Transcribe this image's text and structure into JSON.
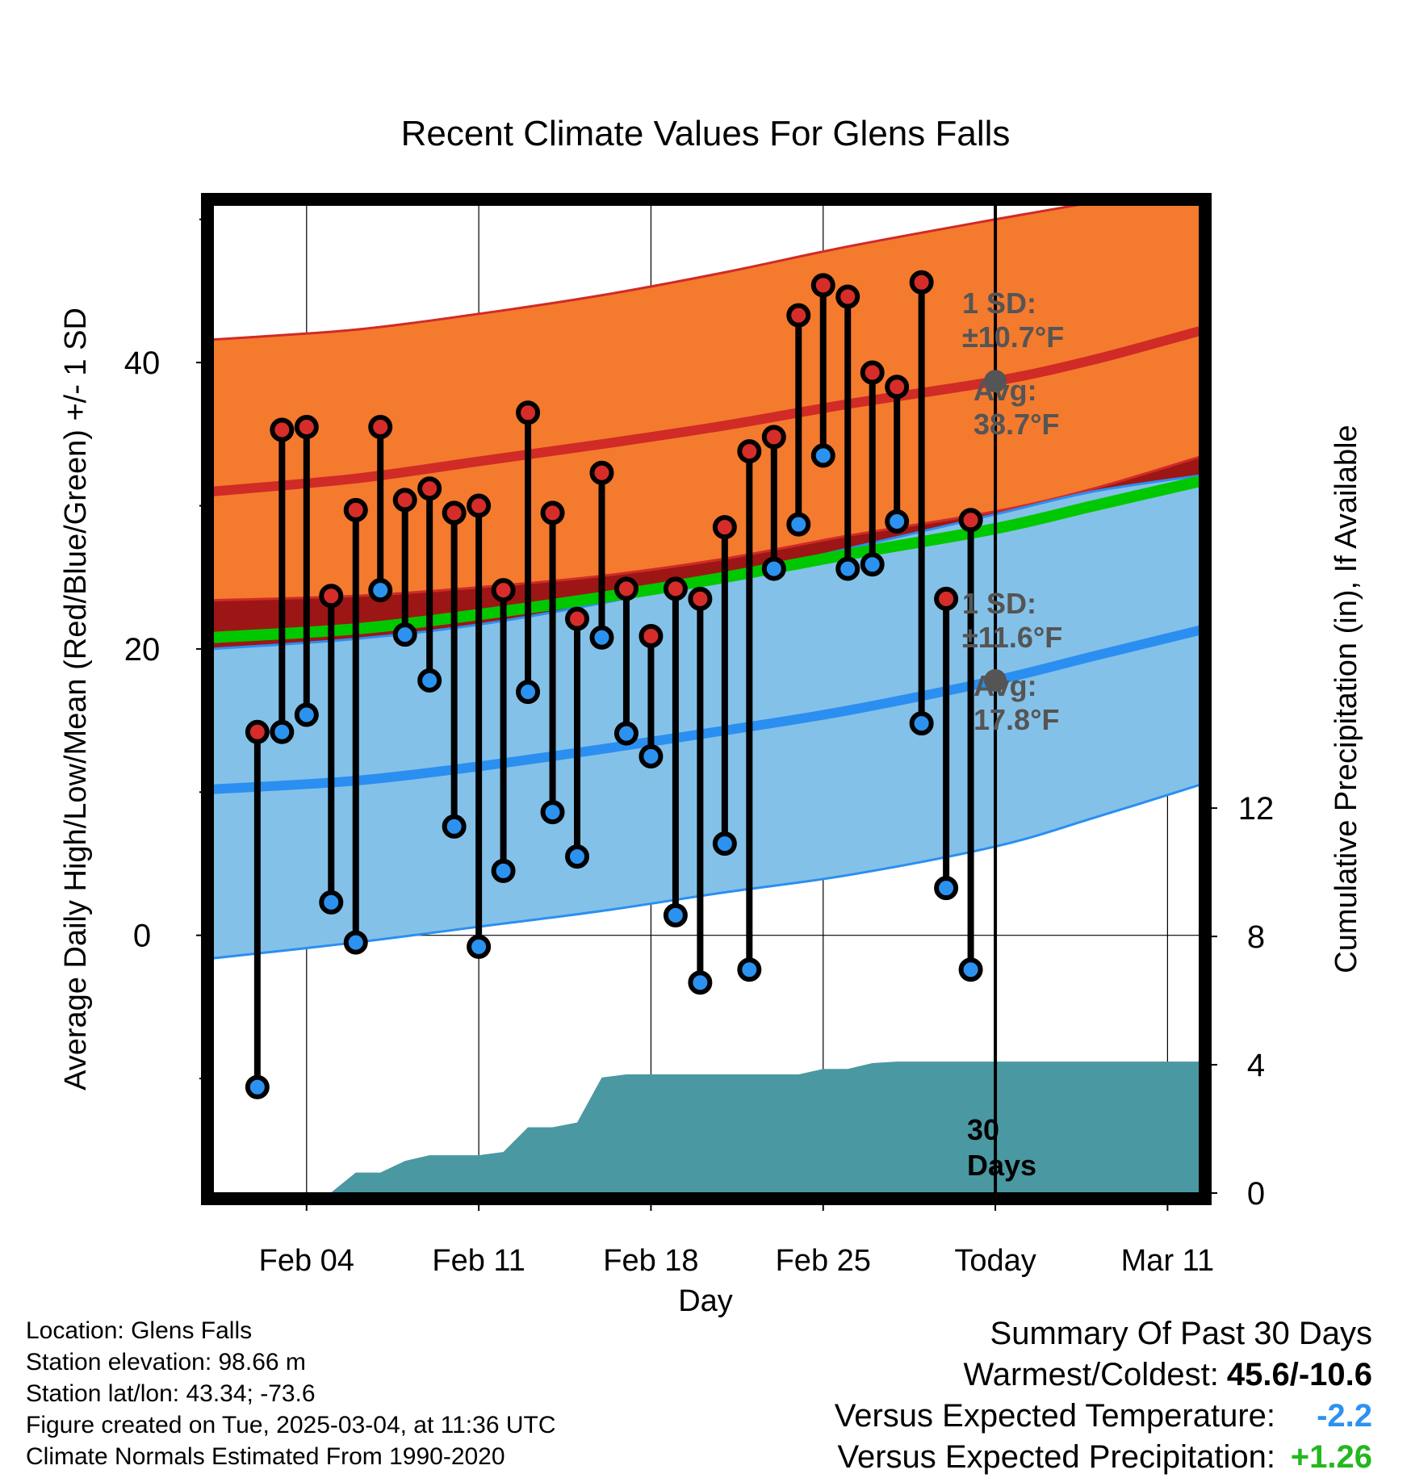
{
  "colors": {
    "high_band": "#f47a2e",
    "high_band_edge": "#d02b26",
    "overlap_band": "#9d1616",
    "low_band": "#84c1e8",
    "low_band_edge": "#2a8ff0",
    "mean_line": "#00c800",
    "precip_fill": "#4a98a2",
    "high_marker": "#d62d2a",
    "low_marker": "#2c92f0",
    "annotation": "#555555",
    "below_expected": "#2c92f0",
    "above_expected": "#22b81e"
  },
  "chart_data": {
    "type": "line",
    "title": "Recent Climate Values For Glens Falls",
    "xlabel": "Day",
    "ylabel": "Average Daily High/Low/Mean (Red/Blue/Green) +/- 1 SD",
    "y2label": "Cumulative Precipitation (in), If Available",
    "x_range_days": [
      -0.8,
      39.3
    ],
    "ylim": [
      -18,
      51
    ],
    "y_ticks": [
      "0",
      "20",
      "40"
    ],
    "y2lim": [
      0,
      30.8
    ],
    "y2_ticks": [
      "0",
      "4",
      "8",
      "12"
    ],
    "x_ticks": [
      {
        "day": 3,
        "label": "Feb 04"
      },
      {
        "day": 10,
        "label": "Feb 11"
      },
      {
        "day": 17,
        "label": "Feb 18"
      },
      {
        "day": 24,
        "label": "Feb 25"
      },
      {
        "day": 31,
        "label": "Today"
      },
      {
        "day": 38,
        "label": "Mar 11"
      }
    ],
    "normals": {
      "days": [
        -0.8,
        5,
        10,
        15,
        20,
        25,
        31,
        35,
        39.3
      ],
      "high_avg": [
        31.0,
        31.9,
        33.1,
        34.3,
        35.6,
        37.1,
        38.7,
        40.2,
        42.2
      ],
      "high_minus_sd": [
        23.4,
        23.7,
        24.3,
        25.1,
        26.3,
        27.9,
        29.6,
        31.2,
        33.4
      ],
      "high_plus_sd": [
        41.6,
        42.3,
        43.4,
        44.7,
        46.3,
        48.1,
        50.0,
        51.2,
        52.5
      ],
      "low_avg": [
        10.2,
        10.8,
        11.8,
        13.0,
        14.3,
        15.7,
        17.8,
        19.5,
        21.3
      ],
      "low_plus_sd": [
        20.0,
        20.7,
        21.7,
        23.2,
        25.0,
        27.0,
        29.4,
        31.0,
        32.1
      ],
      "low_minus_sd": [
        -1.6,
        -0.5,
        0.6,
        1.7,
        3.0,
        4.2,
        6.2,
        8.2,
        10.5
      ],
      "mean": [
        20.8,
        21.4,
        22.4,
        23.6,
        25.0,
        26.6,
        28.4,
        30.0,
        31.7
      ]
    },
    "daily_days": [
      1,
      2,
      3,
      4,
      5,
      6,
      7,
      8,
      9,
      10,
      11,
      12,
      13,
      14,
      15,
      16,
      17,
      18,
      19,
      20,
      21,
      22,
      23,
      24,
      25,
      26,
      27,
      28,
      29,
      30
    ],
    "daily_high": [
      14.2,
      35.3,
      35.5,
      23.7,
      29.7,
      35.5,
      30.4,
      31.2,
      29.5,
      30.0,
      24.1,
      36.5,
      29.5,
      22.1,
      32.3,
      24.2,
      20.9,
      24.2,
      23.5,
      28.5,
      33.8,
      34.8,
      43.3,
      45.4,
      44.6,
      39.3,
      38.3,
      45.6,
      23.5,
      29.0
    ],
    "daily_low": [
      -10.6,
      14.2,
      15.4,
      2.3,
      -0.5,
      24.1,
      21.0,
      17.8,
      7.6,
      -0.8,
      4.5,
      17.0,
      8.6,
      5.5,
      20.8,
      14.1,
      12.5,
      1.4,
      -3.3,
      6.4,
      -2.4,
      25.6,
      28.7,
      33.5,
      25.6,
      25.9,
      28.9,
      14.8,
      3.3,
      -2.4
    ],
    "precip_days": [
      1,
      2,
      3,
      4,
      5,
      6,
      7,
      8,
      9,
      10,
      11,
      12,
      13,
      14,
      15,
      16,
      17,
      18,
      19,
      20,
      21,
      22,
      23,
      24,
      25,
      26,
      27,
      28,
      29,
      30,
      31,
      39.3
    ],
    "precip_cumulative": [
      0,
      0,
      0.02,
      0.02,
      0.64,
      0.64,
      1.0,
      1.18,
      1.18,
      1.18,
      1.28,
      2.05,
      2.05,
      2.2,
      3.6,
      3.7,
      3.7,
      3.7,
      3.7,
      3.7,
      3.7,
      3.7,
      3.7,
      3.87,
      3.87,
      4.05,
      4.1,
      4.1,
      4.1,
      4.1,
      4.1,
      4.1
    ],
    "today_marker": {
      "day": 31,
      "high_avg": 38.7,
      "low_avg": 17.8
    },
    "annotations": {
      "high_sd_label": "1 SD:",
      "high_sd_value": "±10.7°F",
      "high_avg_label": "Avg:",
      "high_avg_value": "38.7°F",
      "low_sd_label": "1 SD:",
      "low_sd_value": "±11.6°F",
      "low_avg_label": "Avg:",
      "low_avg_value": "17.8°F",
      "days_count": "30",
      "days_word": "Days"
    }
  },
  "footer": {
    "location": "Location: Glens Falls",
    "elevation": "Station elevation: 98.66 m",
    "latlon": "Station lat/lon: 43.34; -73.6",
    "created": "Figure created on Tue, 2025-03-04, at 11:36 UTC",
    "normals": "Climate Normals Estimated From 1990-2020"
  },
  "summary": {
    "title": "Summary Of Past 30 Days",
    "warm_cold_label": "Warmest/Coldest:",
    "warm_cold_value": "45.6/-10.6",
    "temp_label": "Versus Expected Temperature:",
    "temp_value": "-2.2",
    "precip_label": "Versus Expected Precipitation:",
    "precip_value": "+1.26"
  }
}
